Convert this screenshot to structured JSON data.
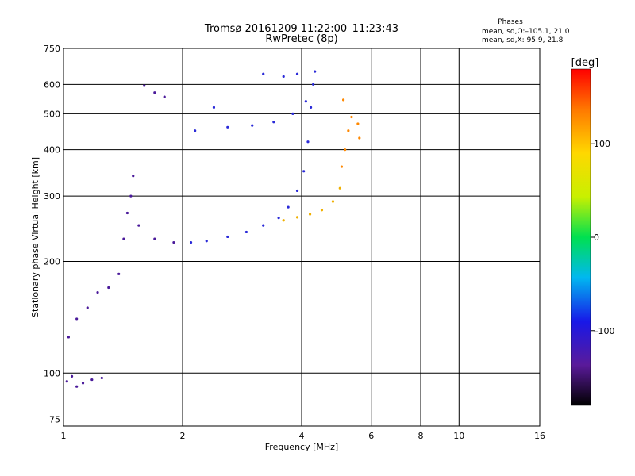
{
  "title": "Tromsø 20161209 11:22:00–11:23:43",
  "subtitle": "RwPretec (8p)",
  "phases_box": {
    "heading": "Phases",
    "line_o": "mean, sd,O:–105.1, 21.0",
    "line_x": "mean, sd,X:  95.9, 21.8"
  },
  "colorbar": {
    "unit": "[deg]",
    "tick_labels": [
      "100",
      "0",
      "–100"
    ],
    "tick_values": [
      100,
      0,
      -100
    ],
    "range": [
      -180,
      180
    ]
  },
  "colors": {
    "o_mode": "#2a2ad8",
    "o_mode_low": "#4a1a9a",
    "x_mode": "#f0b000",
    "x_mode_high": "#ff8800"
  },
  "chart_data": {
    "type": "scatter",
    "xlabel": "Frequency [MHz]",
    "ylabel": "Stationary phase Virtual Height [km]",
    "x_scale": "log",
    "y_scale": "log",
    "xlim": [
      1,
      16
    ],
    "ylim": [
      72,
      750
    ],
    "x_ticks": [
      1,
      2,
      4,
      6,
      8,
      10,
      16
    ],
    "x_tick_labels": [
      "1",
      "2",
      "4",
      "6",
      "8",
      "10",
      "16"
    ],
    "y_ticks": [
      75,
      100,
      200,
      300,
      400,
      500,
      600,
      750
    ],
    "y_tick_labels": [
      "75",
      "100",
      "200",
      "300",
      "400",
      "500",
      "600",
      "750"
    ],
    "grid": true,
    "series": [
      {
        "mode": "O",
        "points": [
          [
            1.02,
            95
          ],
          [
            1.05,
            98
          ],
          [
            1.08,
            92
          ],
          [
            1.12,
            94
          ],
          [
            1.18,
            96
          ],
          [
            1.25,
            97
          ],
          [
            1.03,
            125
          ],
          [
            1.08,
            140
          ],
          [
            1.15,
            150
          ],
          [
            1.22,
            165
          ],
          [
            1.3,
            170
          ],
          [
            1.38,
            185
          ],
          [
            1.42,
            230
          ],
          [
            1.45,
            270
          ],
          [
            1.48,
            300
          ],
          [
            1.5,
            340
          ],
          [
            1.55,
            250
          ],
          [
            1.7,
            230
          ],
          [
            1.9,
            225
          ],
          [
            2.1,
            225
          ],
          [
            2.3,
            227
          ],
          [
            2.6,
            233
          ],
          [
            2.9,
            240
          ],
          [
            3.2,
            250
          ],
          [
            3.5,
            262
          ],
          [
            3.7,
            280
          ],
          [
            3.9,
            310
          ],
          [
            4.05,
            350
          ],
          [
            4.15,
            420
          ],
          [
            4.22,
            520
          ],
          [
            4.28,
            600
          ],
          [
            4.32,
            650
          ],
          [
            1.6,
            595
          ],
          [
            1.7,
            570
          ],
          [
            1.8,
            555
          ],
          [
            2.15,
            450
          ],
          [
            2.6,
            460
          ],
          [
            3.0,
            465
          ],
          [
            3.4,
            475
          ],
          [
            3.8,
            500
          ],
          [
            4.1,
            540
          ],
          [
            2.4,
            520
          ],
          [
            3.2,
            640
          ],
          [
            3.6,
            630
          ],
          [
            3.9,
            640
          ]
        ]
      },
      {
        "mode": "X",
        "points": [
          [
            3.6,
            258
          ],
          [
            3.9,
            263
          ],
          [
            4.2,
            268
          ],
          [
            4.5,
            275
          ],
          [
            4.8,
            290
          ],
          [
            5.0,
            315
          ],
          [
            5.05,
            360
          ],
          [
            5.15,
            400
          ],
          [
            5.25,
            450
          ],
          [
            5.35,
            490
          ],
          [
            5.1,
            545
          ],
          [
            5.55,
            470
          ],
          [
            5.6,
            430
          ]
        ]
      }
    ]
  }
}
